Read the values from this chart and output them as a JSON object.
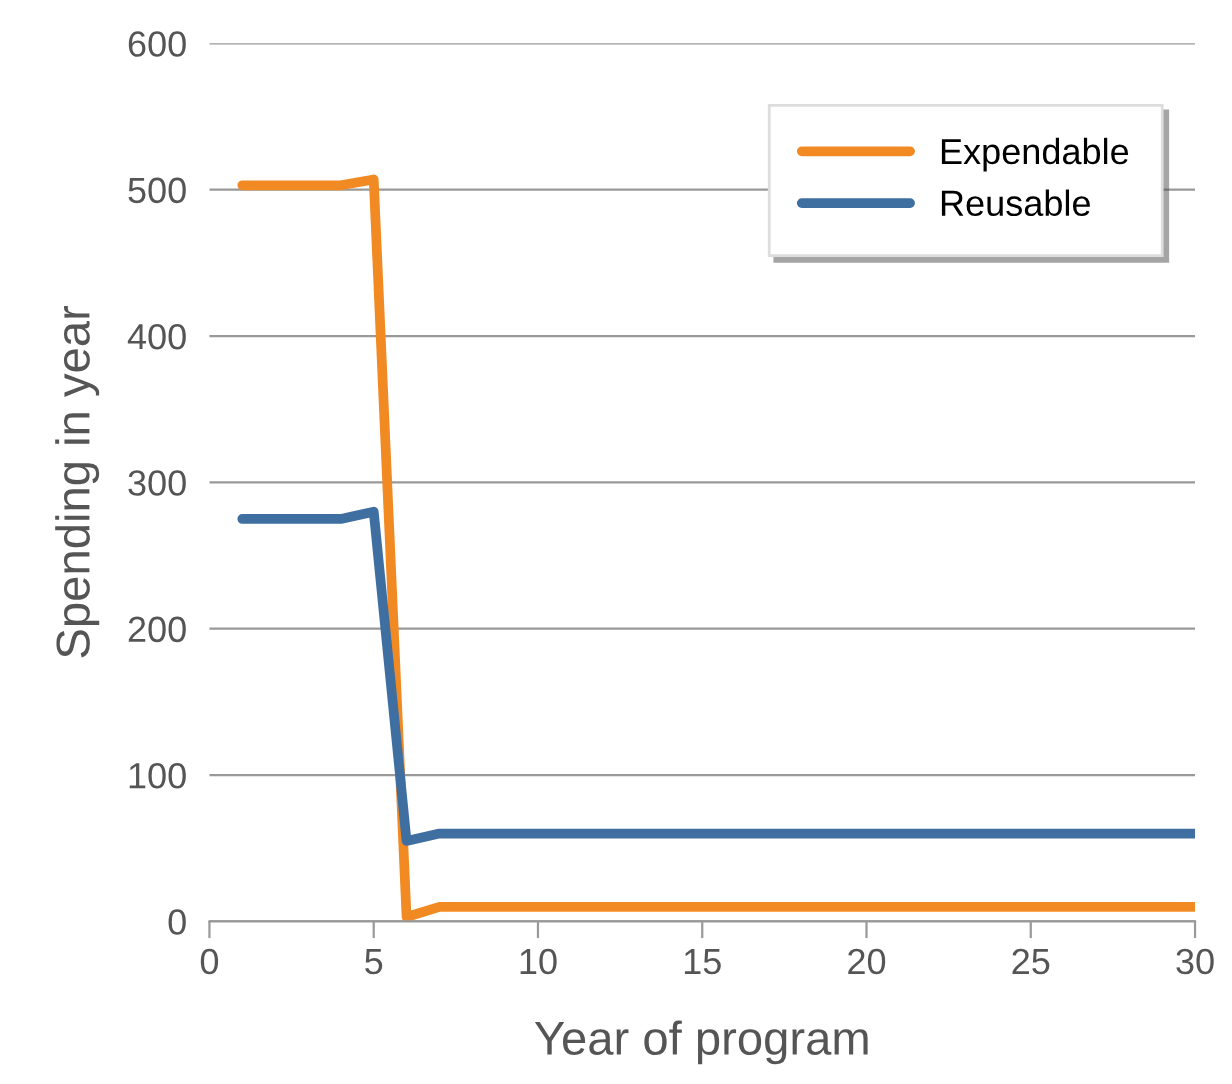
{
  "chart_data": {
    "type": "line",
    "xlabel": "Year of program",
    "ylabel": "Spending in year",
    "x": [
      1,
      2,
      3,
      4,
      5,
      6,
      7,
      8,
      9,
      10,
      11,
      12,
      13,
      14,
      15,
      16,
      17,
      18,
      19,
      20,
      21,
      22,
      23,
      24,
      25,
      26,
      27,
      28,
      29,
      30
    ],
    "series": [
      {
        "name": "Expendable",
        "color": "#f28a24",
        "values": [
          503,
          503,
          503,
          503,
          507,
          3,
          10,
          10,
          10,
          10,
          10,
          10,
          10,
          10,
          10,
          10,
          10,
          10,
          10,
          10,
          10,
          10,
          10,
          10,
          10,
          10,
          10,
          10,
          10,
          10
        ]
      },
      {
        "name": "Reusable",
        "color": "#3f6fa0",
        "values": [
          275,
          275,
          275,
          275,
          280,
          55,
          60,
          60,
          60,
          60,
          60,
          60,
          60,
          60,
          60,
          60,
          60,
          60,
          60,
          60,
          60,
          60,
          60,
          60,
          60,
          60,
          60,
          60,
          60,
          60
        ]
      }
    ],
    "xlim": [
      0,
      30
    ],
    "ylim": [
      0,
      600
    ],
    "xticks": [
      0,
      5,
      10,
      15,
      20,
      25,
      30
    ],
    "yticks": [
      0,
      100,
      200,
      300,
      400,
      500,
      600
    ],
    "grid": "y",
    "legend": "top right",
    "marker": "none",
    "line_style": "solid"
  }
}
